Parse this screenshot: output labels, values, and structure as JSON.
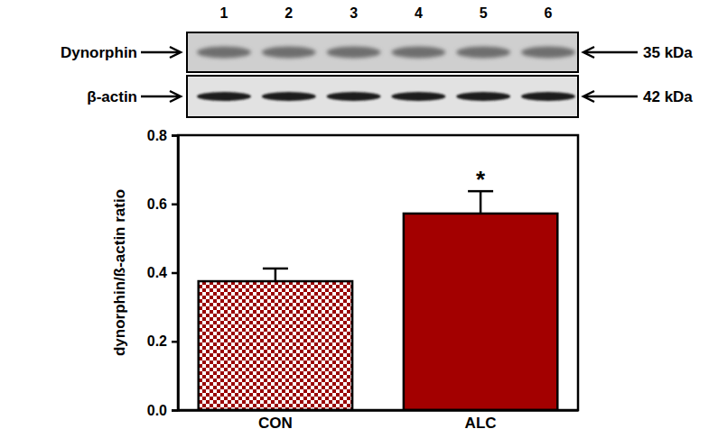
{
  "chart_data": {
    "type": "bar",
    "y_label": "dynorphin/ß-actin ratio",
    "categories": [
      "CON",
      "ALC"
    ],
    "values": [
      0.375,
      0.572
    ],
    "errors": [
      0.037,
      0.065
    ],
    "colors": [
      "#990000",
      "#a30000"
    ],
    "ylim": [
      0,
      0.8
    ],
    "yticks": [
      {
        "value": 0,
        "label": "0.0"
      },
      0.2,
      0.4,
      0.6,
      0.8
    ],
    "annotations": {
      "lanes": [
        "1",
        "2",
        "3",
        "4",
        "5",
        "6"
      ],
      "blots": [
        {
          "label": "Dynorphin",
          "size": "35 kDa"
        },
        {
          "label": "β-actin",
          "size": "42 kDa"
        }
      ],
      "significance": [
        {
          "category": "ALC",
          "text": "*"
        }
      ]
    }
  }
}
